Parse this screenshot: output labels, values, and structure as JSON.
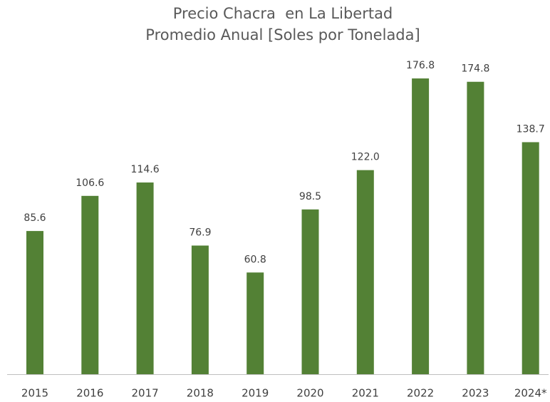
{
  "chart_data": {
    "type": "bar",
    "title": "Precio Chacra  en La Libertad",
    "subtitle": "Promedio Anual [Soles por Tonelada]",
    "categories": [
      "2015",
      "2016",
      "2017",
      "2018",
      "2019",
      "2020",
      "2021",
      "2022",
      "2023",
      "2024*"
    ],
    "values": [
      85.6,
      106.6,
      114.6,
      76.9,
      60.8,
      98.5,
      122.0,
      176.8,
      174.8,
      138.7
    ],
    "value_labels": [
      "85.6",
      "106.6",
      "114.6",
      "76.9",
      "60.8",
      "98.5",
      "122.0",
      "176.8",
      "174.8",
      "138.7"
    ],
    "color": "#538135"
  }
}
